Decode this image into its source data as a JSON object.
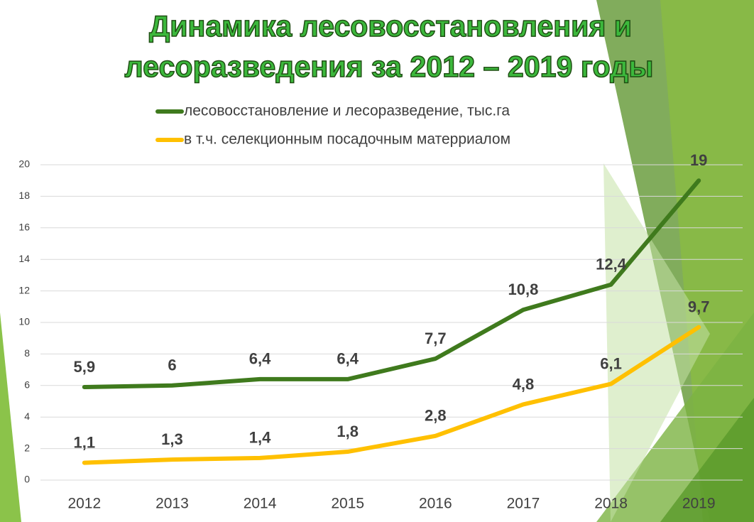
{
  "chart_data": {
    "type": "line",
    "title": [
      "Динамика лесовосстановления и",
      "лесоразведения за 2012 – 2019 годы"
    ],
    "categories": [
      "2012",
      "2013",
      "2014",
      "2015",
      "2016",
      "2017",
      "2018",
      "2019"
    ],
    "series": [
      {
        "name": "лесовосстановление и лесоразведение, тыс.га",
        "color": "#3f7a1d",
        "values": [
          5.9,
          6,
          6.4,
          6.4,
          7.7,
          10.8,
          12.4,
          19
        ],
        "value_labels": [
          "5,9",
          "6",
          "6,4",
          "6,4",
          "7,7",
          "10,8",
          "12,4",
          "19"
        ]
      },
      {
        "name": "в т.ч. селекционным посадочным матерриалом",
        "color": "#ffc000",
        "values": [
          1.1,
          1.3,
          1.4,
          1.8,
          2.8,
          4.8,
          6.1,
          9.7
        ],
        "value_labels": [
          "1,1",
          "1,3",
          "1,4",
          "1,8",
          "2,8",
          "4,8",
          "6,1",
          "9,7"
        ]
      }
    ],
    "ylim": [
      0,
      20
    ],
    "yticks": [
      0,
      2,
      4,
      6,
      8,
      10,
      12,
      14,
      16,
      18,
      20
    ],
    "grid": true
  }
}
